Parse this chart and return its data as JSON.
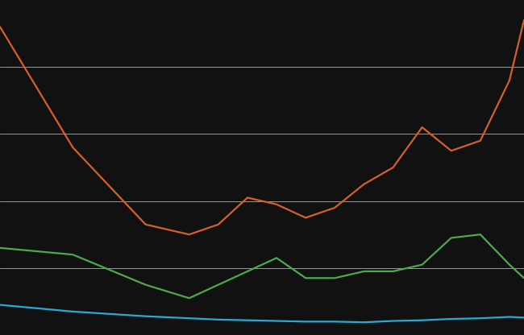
{
  "years": [
    1980,
    1985,
    1990,
    1993,
    1995,
    1997,
    1999,
    2001,
    2003,
    2005,
    2007,
    2009,
    2011,
    2013,
    2015,
    2016
  ],
  "orange": [
    46.0,
    28.0,
    16.5,
    15.0,
    16.5,
    20.5,
    19.5,
    17.5,
    19.0,
    22.5,
    25.0,
    31.0,
    27.5,
    29.0,
    38.0,
    47.0
  ],
  "green": [
    13.0,
    12.0,
    7.5,
    5.5,
    7.5,
    9.5,
    11.5,
    8.5,
    8.5,
    9.5,
    9.5,
    10.5,
    14.5,
    15.0,
    10.5,
    8.5
  ],
  "blue": [
    4.5,
    3.5,
    2.8,
    2.5,
    2.3,
    2.2,
    2.1,
    2.0,
    2.0,
    1.9,
    2.1,
    2.2,
    2.4,
    2.5,
    2.7,
    2.6
  ],
  "orange_color": "#d45f2a",
  "green_color": "#4aaa4a",
  "blue_color": "#29aad4",
  "background_color": "#111111",
  "grid_color": "#ffffff",
  "ylim": [
    0,
    50
  ],
  "ytick_positions": [
    10,
    20,
    30,
    40
  ],
  "xlim": [
    1980,
    2016
  ],
  "line_width": 1.6
}
